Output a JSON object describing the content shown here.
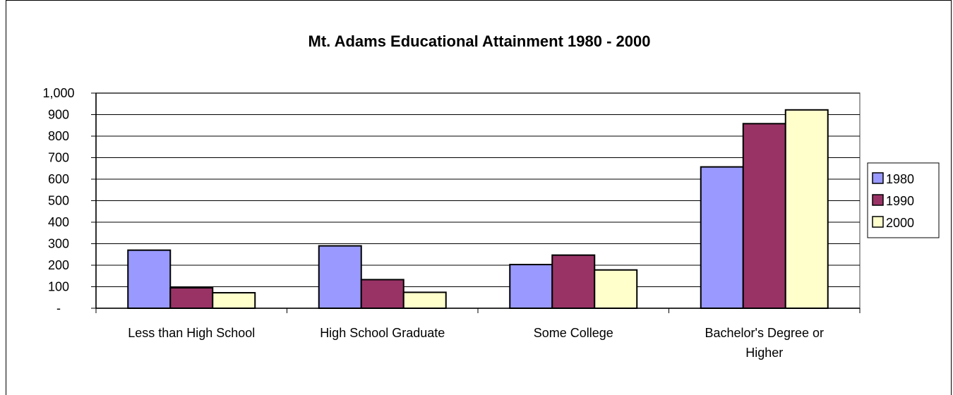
{
  "chart_data": {
    "type": "bar",
    "title": "Mt. Adams Educational Attainment 1980 - 2000",
    "xlabel": "",
    "ylabel": "",
    "ylim": [
      0,
      1000
    ],
    "yticks": [
      0,
      100,
      200,
      300,
      400,
      500,
      600,
      700,
      800,
      900,
      1000
    ],
    "ytick_labels": [
      "-",
      "100",
      "200",
      "300",
      "400",
      "500",
      "600",
      "700",
      "800",
      "900",
      "1,000"
    ],
    "categories": [
      [
        "Less than High School"
      ],
      [
        "High School Graduate"
      ],
      [
        "Some College"
      ],
      [
        "Bachelor's Degree or",
        "Higher"
      ]
    ],
    "series": [
      {
        "name": "1980",
        "color": "#9999ff",
        "values": [
          270,
          290,
          203,
          657
        ]
      },
      {
        "name": "1990",
        "color": "#993366",
        "values": [
          95,
          133,
          247,
          858
        ]
      },
      {
        "name": "2000",
        "color": "#ffffcc",
        "values": [
          72,
          74,
          178,
          922
        ]
      }
    ],
    "grid": true,
    "legend_position": "right"
  }
}
